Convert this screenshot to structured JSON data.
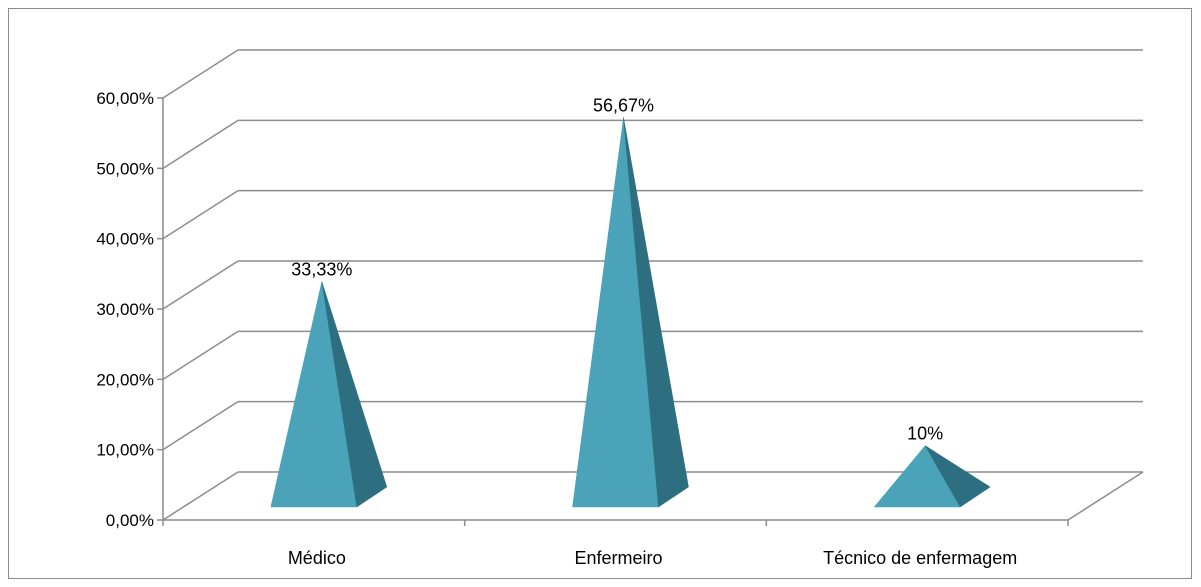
{
  "chart_data": {
    "type": "bar",
    "bar_shape": "pyramid-3d",
    "categories": [
      "Médico",
      "Enfermeiro",
      "Técnico de enfermagem"
    ],
    "values": [
      33.33,
      56.67,
      10
    ],
    "data_labels": [
      "33,33%",
      "56,67%",
      "10%"
    ],
    "y_tick_labels": [
      "0,00%",
      "10,00%",
      "20,00%",
      "30,00%",
      "40,00%",
      "50,00%",
      "60,00%"
    ],
    "ylim": [
      0,
      60
    ],
    "y_step": 10,
    "grid": true,
    "legend": "none",
    "title": "",
    "xlabel": "",
    "ylabel": "",
    "colors": {
      "front_face": "#4aa3b9",
      "side_face": "#2d6f80",
      "grid_line": "#8c8c8c",
      "frame": "#8c8c8c"
    }
  }
}
